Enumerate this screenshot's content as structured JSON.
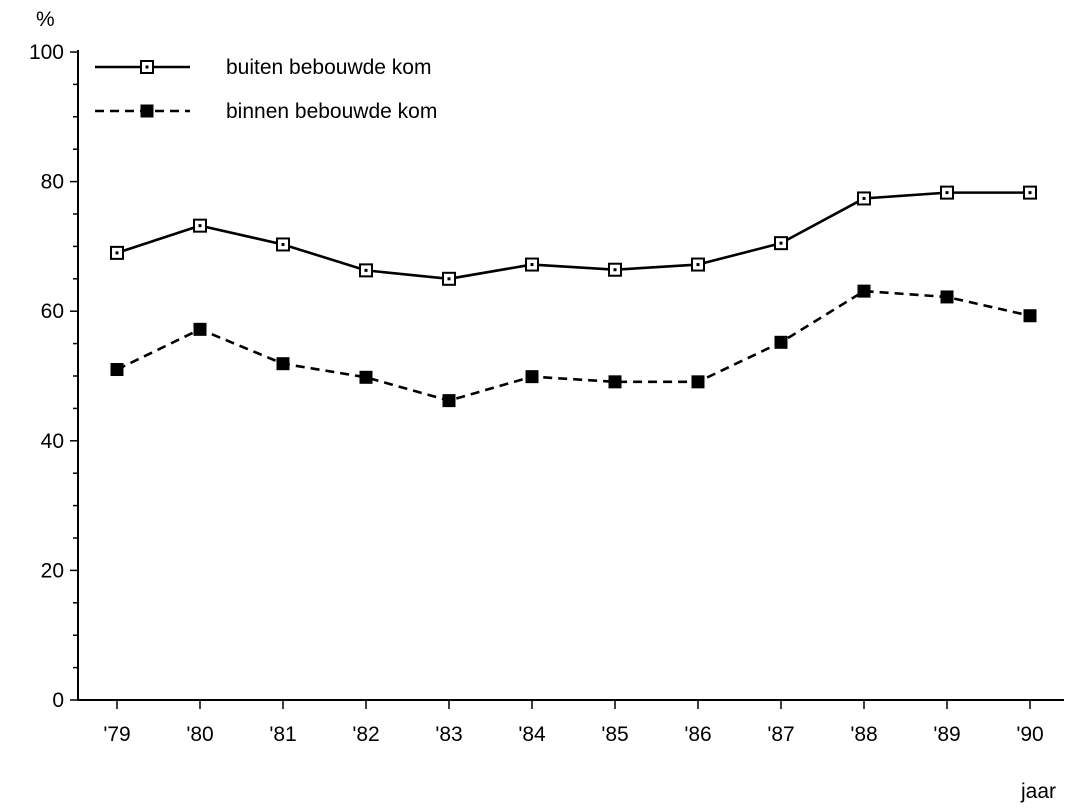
{
  "chart_data": {
    "type": "line",
    "title": "",
    "ylabel": "%",
    "xlabel": "jaar",
    "ylim": [
      0,
      100
    ],
    "yticks": [
      0,
      20,
      40,
      60,
      80,
      100
    ],
    "categories": [
      "'79",
      "'80",
      "'81",
      "'82",
      "'83",
      "'84",
      "'85",
      "'86",
      "'87",
      "'88",
      "'89",
      "'90"
    ],
    "grid": false,
    "legend_position": "top-left",
    "series": [
      {
        "name": "buiten bebouwde kom",
        "style": "solid",
        "marker": "open-square",
        "color": "#000000",
        "values": [
          69,
          73.2,
          70.3,
          66.3,
          65,
          67.2,
          66.4,
          67.2,
          70.5,
          77.4,
          78.3,
          78.3
        ]
      },
      {
        "name": "binnen bebouwde kom",
        "style": "dashed",
        "marker": "filled-square",
        "color": "#000000",
        "values": [
          51,
          57.2,
          51.9,
          49.8,
          46.2,
          49.9,
          49.1,
          49.1,
          55.2,
          63.1,
          62.2,
          59.3
        ]
      }
    ]
  }
}
